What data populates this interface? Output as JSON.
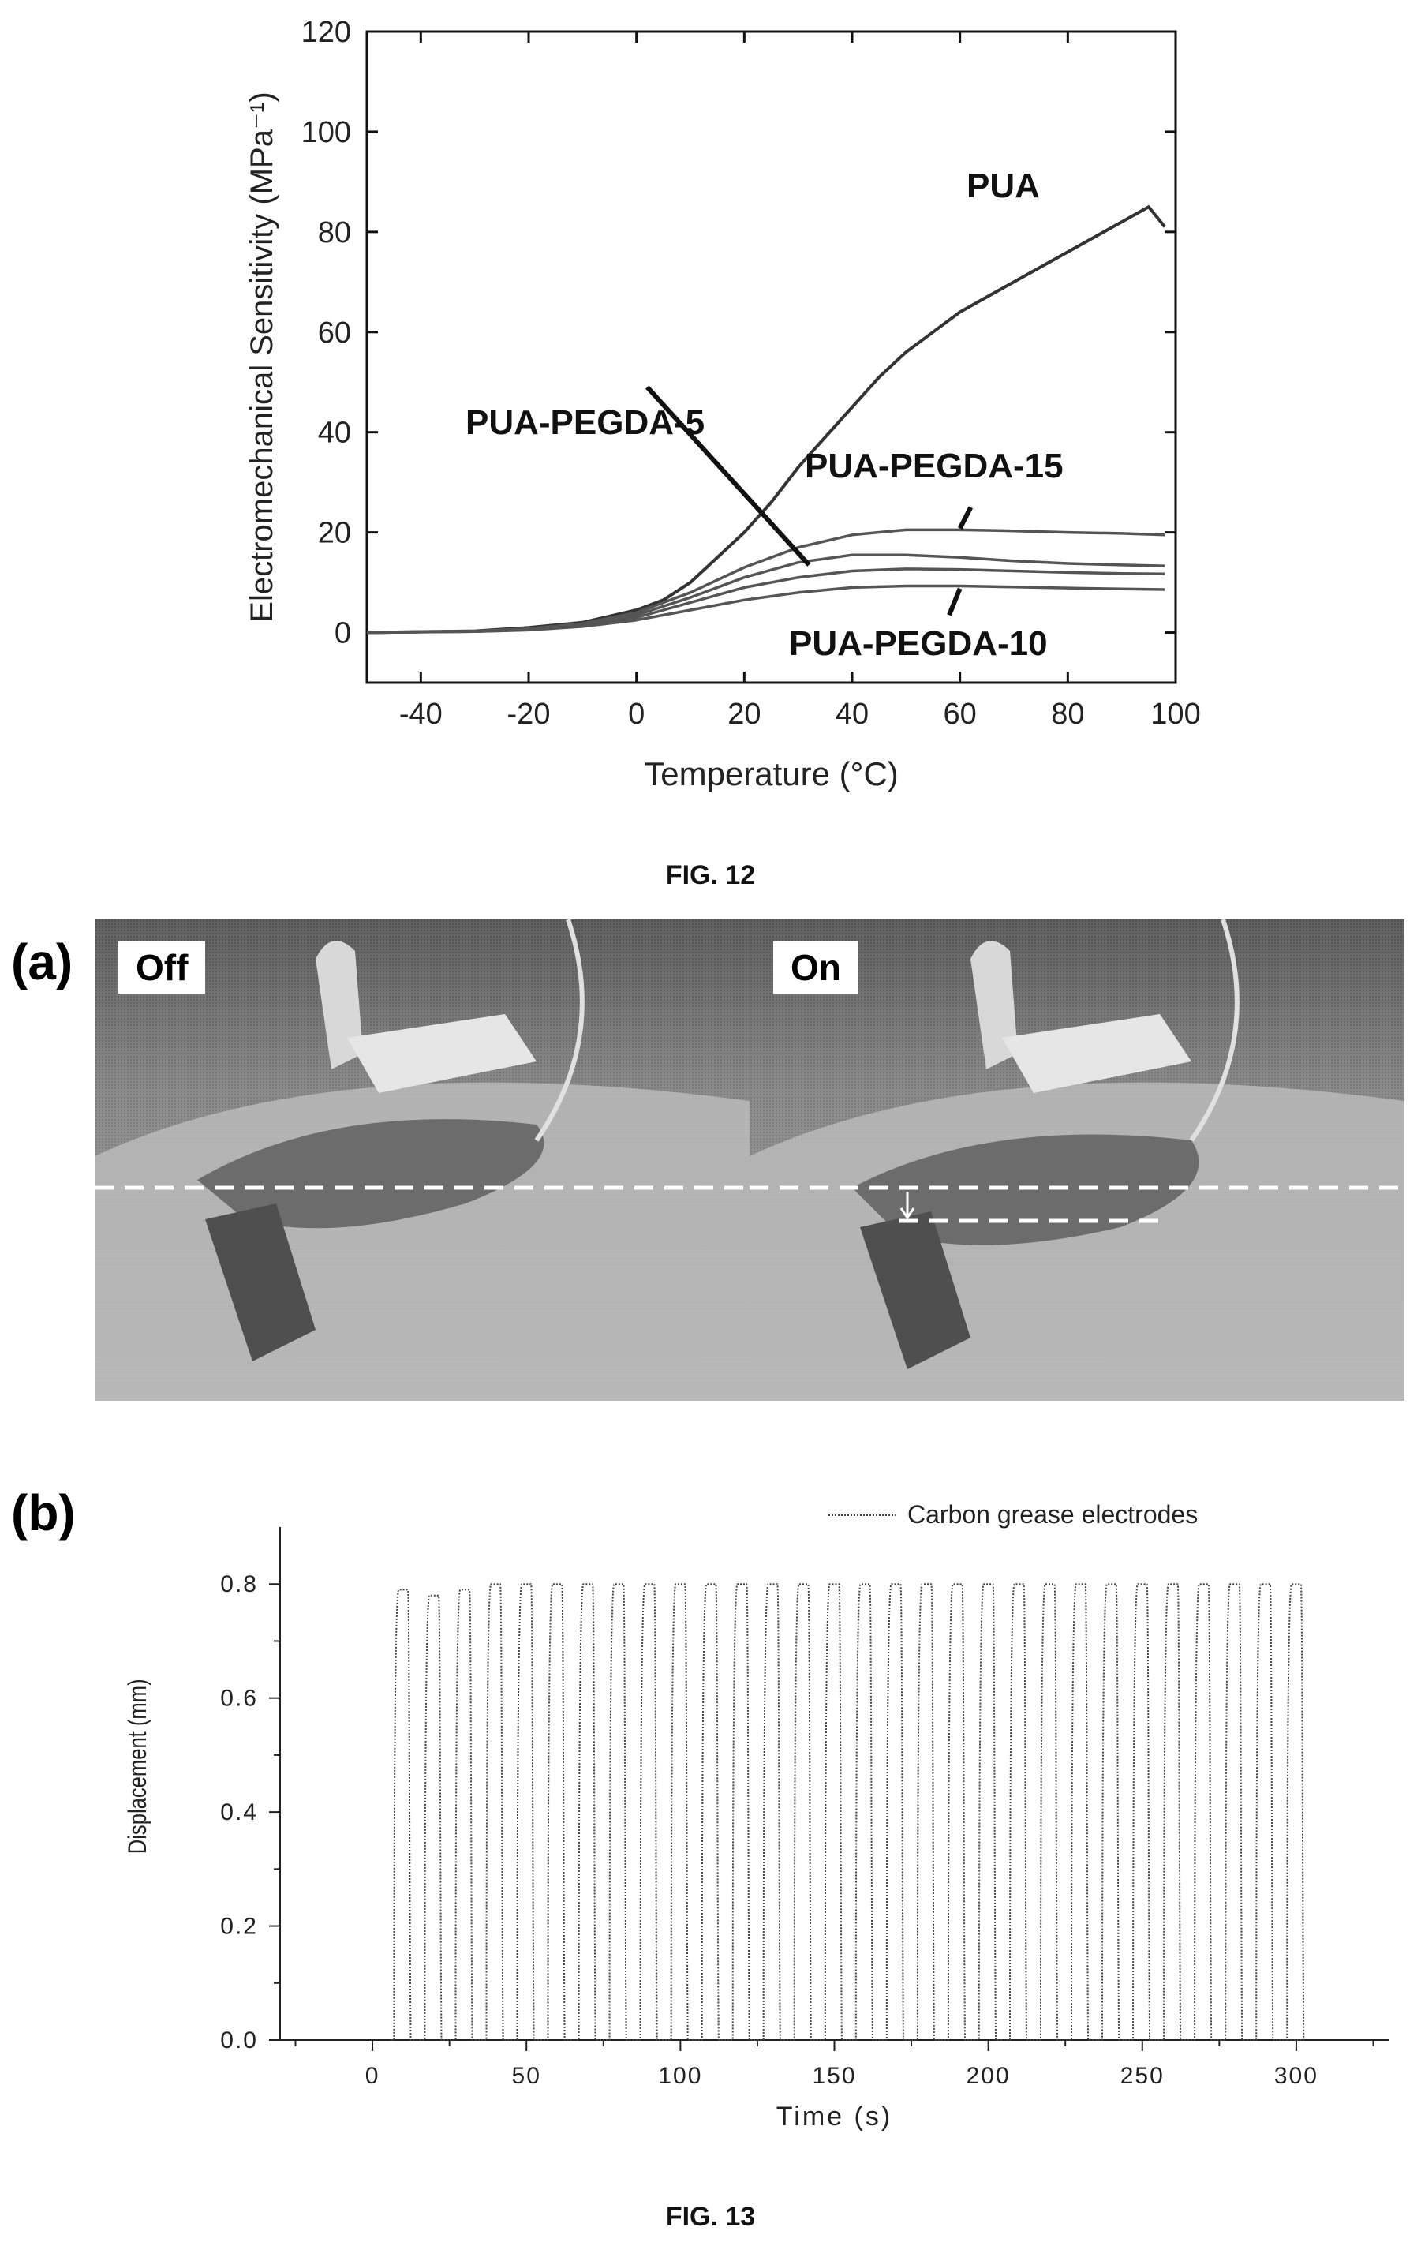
{
  "fig12": {
    "caption": "FIG. 12",
    "chart_data": {
      "type": "line",
      "title": "",
      "xlabel": "Temperature (°C)",
      "ylabel": "Electromechanical Sensitivity (MPa⁻¹)",
      "xlim": [
        -50,
        100
      ],
      "ylim": [
        -10,
        120
      ],
      "xticks": [
        -40,
        -20,
        0,
        20,
        40,
        60,
        80,
        100
      ],
      "yticks": [
        0,
        20,
        40,
        60,
        80,
        100,
        120
      ],
      "grid": false,
      "series": [
        {
          "name": "PUA",
          "x": [
            -50,
            -30,
            -20,
            -10,
            0,
            5,
            10,
            15,
            20,
            25,
            30,
            35,
            40,
            45,
            50,
            55,
            60,
            65,
            70,
            75,
            80,
            85,
            90,
            95,
            98
          ],
          "y": [
            0,
            0.3,
            1,
            2,
            4.5,
            6.5,
            10,
            15,
            20,
            26,
            33,
            39,
            45,
            51,
            56,
            60,
            64,
            67,
            70,
            73,
            76,
            79,
            82,
            85,
            81
          ]
        },
        {
          "name": "PUA-PEGDA-15",
          "x": [
            -50,
            -30,
            -20,
            -10,
            0,
            10,
            20,
            30,
            40,
            50,
            60,
            70,
            80,
            90,
            98
          ],
          "y": [
            0,
            0.3,
            0.8,
            1.8,
            4,
            8,
            13,
            17,
            19.5,
            20.5,
            20.5,
            20.3,
            20,
            19.8,
            19.5
          ]
        },
        {
          "name": "PUA-PEGDA-5",
          "x": [
            -50,
            -30,
            -20,
            -10,
            0,
            10,
            20,
            30,
            40,
            50,
            60,
            70,
            80,
            90,
            98
          ],
          "y": [
            0,
            0.3,
            0.7,
            1.6,
            3.5,
            7,
            11,
            14,
            15.5,
            15.5,
            15,
            14.3,
            13.8,
            13.5,
            13.3
          ]
        },
        {
          "name": "PUA-PEGDA-10",
          "x": [
            -50,
            -30,
            -20,
            -10,
            0,
            10,
            20,
            30,
            40,
            50,
            60,
            70,
            80,
            90,
            98
          ],
          "y": [
            0,
            0.2,
            0.6,
            1.4,
            3,
            6,
            9,
            11,
            12.3,
            12.7,
            12.6,
            12.3,
            12,
            11.8,
            11.7
          ]
        },
        {
          "name": "",
          "x": [
            -50,
            -30,
            -20,
            -10,
            0,
            10,
            20,
            30,
            40,
            50,
            60,
            70,
            80,
            90,
            98
          ],
          "y": [
            0,
            0.2,
            0.5,
            1.2,
            2.5,
            4.5,
            6.5,
            8,
            9,
            9.3,
            9.3,
            9.1,
            8.9,
            8.7,
            8.6
          ]
        }
      ]
    }
  },
  "fig13": {
    "caption": "FIG. 13",
    "panel_a": {
      "label": "(a)",
      "left_tag": "Off",
      "right_tag": "On"
    },
    "panel_b": {
      "label": "(b)",
      "chart_data": {
        "type": "line",
        "title": "",
        "xlabel": "Time (s)",
        "ylabel": "Displacement (mm)",
        "xlim": [
          -30,
          330
        ],
        "ylim": [
          0,
          0.9
        ],
        "xticks": [
          0,
          50,
          100,
          150,
          200,
          250,
          300
        ],
        "yticks": [
          0.0,
          0.2,
          0.4,
          0.6,
          0.8
        ],
        "ytick_labels": [
          "0.0",
          "0.2",
          "0.4",
          "0.6",
          "0.8"
        ],
        "legend_position": "top-right",
        "grid": false,
        "series": [
          {
            "name": "Carbon grease electrodes",
            "pulse_period_s": 10,
            "pulse_start_s": 7,
            "pulse_end_s": 297,
            "duty_fraction": 0.5,
            "peak_values": [
              0.79,
              0.78,
              0.79,
              0.8,
              0.8,
              0.8,
              0.8,
              0.8,
              0.8,
              0.8,
              0.8,
              0.8,
              0.8,
              0.8,
              0.8,
              0.8,
              0.8,
              0.8,
              0.8,
              0.8,
              0.8,
              0.8,
              0.8,
              0.8,
              0.8,
              0.8,
              0.8,
              0.8,
              0.8,
              0.8
            ]
          }
        ]
      }
    }
  }
}
